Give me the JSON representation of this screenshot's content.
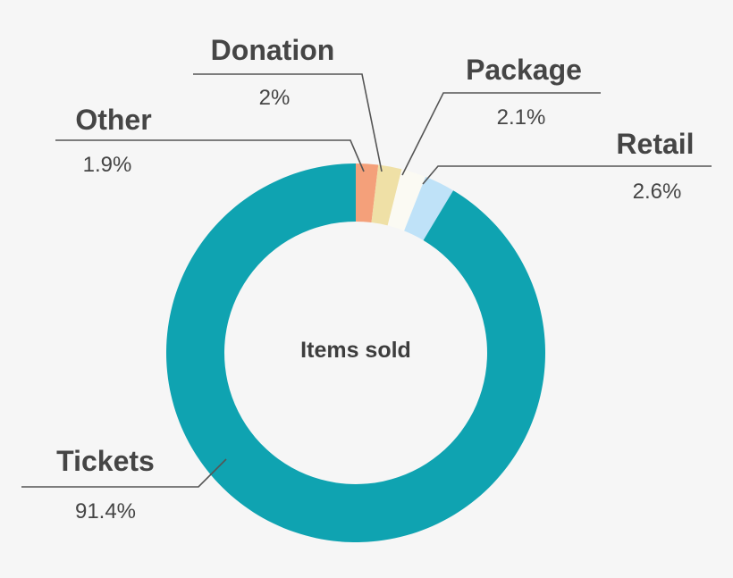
{
  "chart_data": {
    "type": "pie",
    "center_label": "Items sold",
    "slices": [
      {
        "name": "Other",
        "value": 1.9,
        "value_label": "1.9%",
        "color": "#f4a07a"
      },
      {
        "name": "Donation",
        "value": 2.0,
        "value_label": "2%",
        "color": "#efe0a6"
      },
      {
        "name": "Package",
        "value": 2.1,
        "value_label": "2.1%",
        "color": "#fbfaf3"
      },
      {
        "name": "Retail",
        "value": 2.6,
        "value_label": "2.6%",
        "color": "#bfe2f8"
      },
      {
        "name": "Tickets",
        "value": 91.4,
        "value_label": "91.4%",
        "color": "#0fa3b1"
      }
    ]
  }
}
